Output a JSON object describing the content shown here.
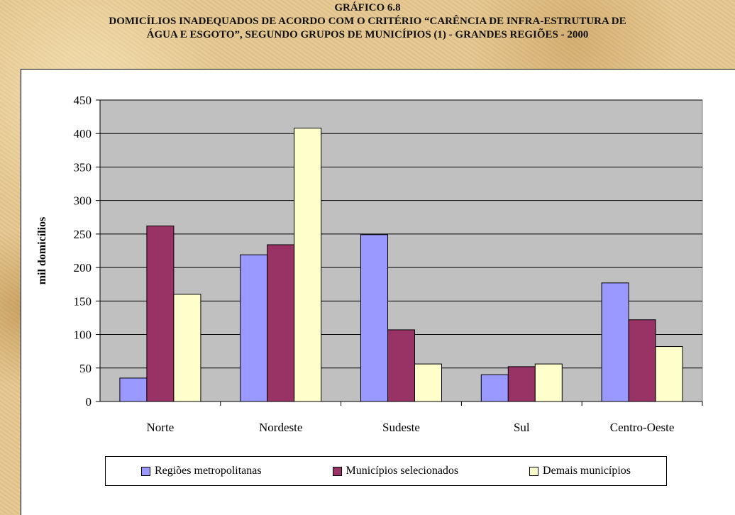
{
  "header": {
    "line1": "GRÁFICO 6.8",
    "line2": "DOMICÍLIOS INADEQUADOS DE ACORDO COM O CRITÉRIO “CARÊNCIA DE INFRA-ESTRUTURA DE",
    "line3": "ÁGUA E ESGOTO”, SEGUNDO GRUPOS DE MUNICÍPIOS (1) - GRANDES REGIÕES - 2000"
  },
  "colors": {
    "plot_background": "#c0c0c0",
    "series": [
      "#9999ff",
      "#993366",
      "#ffffcc"
    ]
  },
  "chart_data": {
    "type": "bar",
    "title": "GRÁFICO 6.8 DOMICÍLIOS INADEQUADOS DE ACORDO COM O CRITÉRIO “CARÊNCIA DE INFRA-ESTRUTURA DE ÁGUA E ESGOTO”, SEGUNDO GRUPOS DE MUNICÍPIOS (1) - GRANDES REGIÕES - 2000",
    "xlabel": "",
    "ylabel": "mil domicílios",
    "ylim": [
      0,
      450
    ],
    "yticks": [
      "0",
      "50",
      "100",
      "150",
      "200",
      "250",
      "300",
      "350",
      "400",
      "450"
    ],
    "grid": true,
    "legend_position": "bottom",
    "categories": [
      "Norte",
      "Nordeste",
      "Sudeste",
      "Sul",
      "Centro-Oeste"
    ],
    "series": [
      {
        "name": "Regiões metropolitanas",
        "values": [
          35,
          219,
          249,
          40,
          177
        ]
      },
      {
        "name": "Municípios selecionados",
        "values": [
          262,
          234,
          107,
          52,
          122
        ]
      },
      {
        "name": "Demais municípios",
        "values": [
          160,
          408,
          56,
          56,
          82
        ]
      }
    ]
  }
}
